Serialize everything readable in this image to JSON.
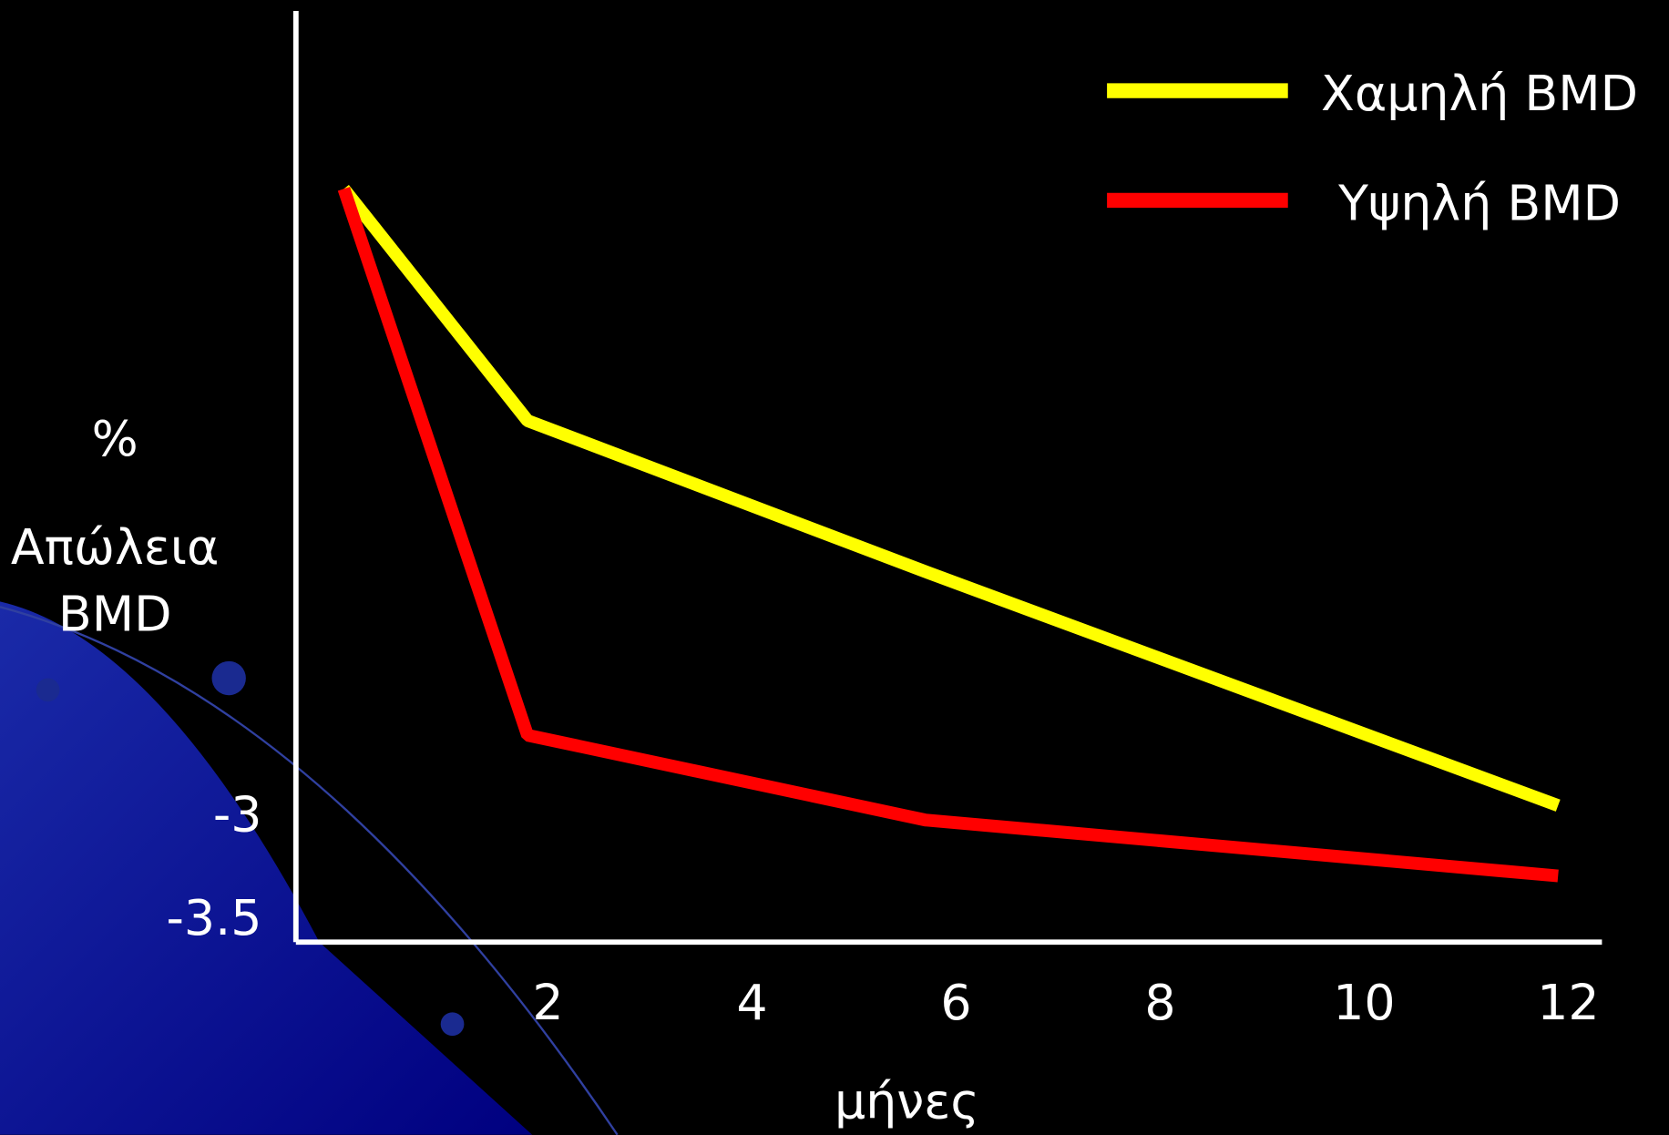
{
  "chart_data": {
    "type": "line",
    "ylabel_lines": [
      "%",
      "Απώλεια",
      "BMD"
    ],
    "xlabel": "μήνες",
    "x": [
      0,
      1.8,
      5.7,
      11.9
    ],
    "series": [
      {
        "name": "Χαμηλή BMD",
        "color": "#ffff00",
        "values": [
          0.04,
          -1.08,
          -1.81,
          -2.94
        ]
      },
      {
        "name": "Υψηλή BMD",
        "color": "#ff0000",
        "values": [
          0.04,
          -2.6,
          -3.01,
          -3.28
        ]
      }
    ],
    "xlim": [
      -0.47,
      12.33
    ],
    "xticks": [
      2,
      4,
      6,
      8,
      10,
      12
    ],
    "ylim": [
      -3.6,
      0.9
    ],
    "yticks": [
      -3,
      -3.5
    ],
    "legend": "top-right"
  }
}
